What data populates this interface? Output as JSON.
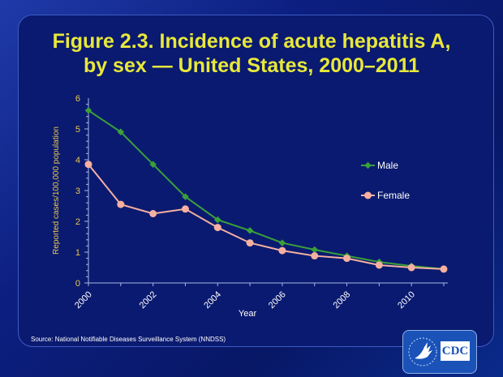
{
  "title_line1": "Figure 2.3. Incidence of acute hepatitis A,",
  "title_line2": "by sex — United States, 2000–2011",
  "source": "Source: National  Notifiable Diseases Surveillance System (NNDSS)",
  "logo_text": "CDC",
  "chart_data": {
    "type": "line",
    "xlabel": "Year",
    "ylabel": "Reported cases/100,000 population",
    "x": [
      2000,
      2001,
      2002,
      2003,
      2004,
      2005,
      2006,
      2007,
      2008,
      2009,
      2010,
      2011
    ],
    "xticks": [
      "2000",
      "2002",
      "2004",
      "2006",
      "2008",
      "2010"
    ],
    "yticks": [
      "0",
      "1",
      "2",
      "3",
      "4",
      "5",
      "6"
    ],
    "ylim": [
      0,
      6
    ],
    "grid": false,
    "legend_placement": "right",
    "series": [
      {
        "name": "Male",
        "color": "#3aa03a",
        "values": [
          5.6,
          4.9,
          3.85,
          2.8,
          2.05,
          1.7,
          1.3,
          1.08,
          0.88,
          0.68,
          0.55,
          0.45
        ]
      },
      {
        "name": "Female",
        "color": "#f5b0a0",
        "values": [
          3.85,
          2.55,
          2.25,
          2.4,
          1.8,
          1.3,
          1.05,
          0.88,
          0.8,
          0.58,
          0.5,
          0.45
        ]
      }
    ]
  }
}
